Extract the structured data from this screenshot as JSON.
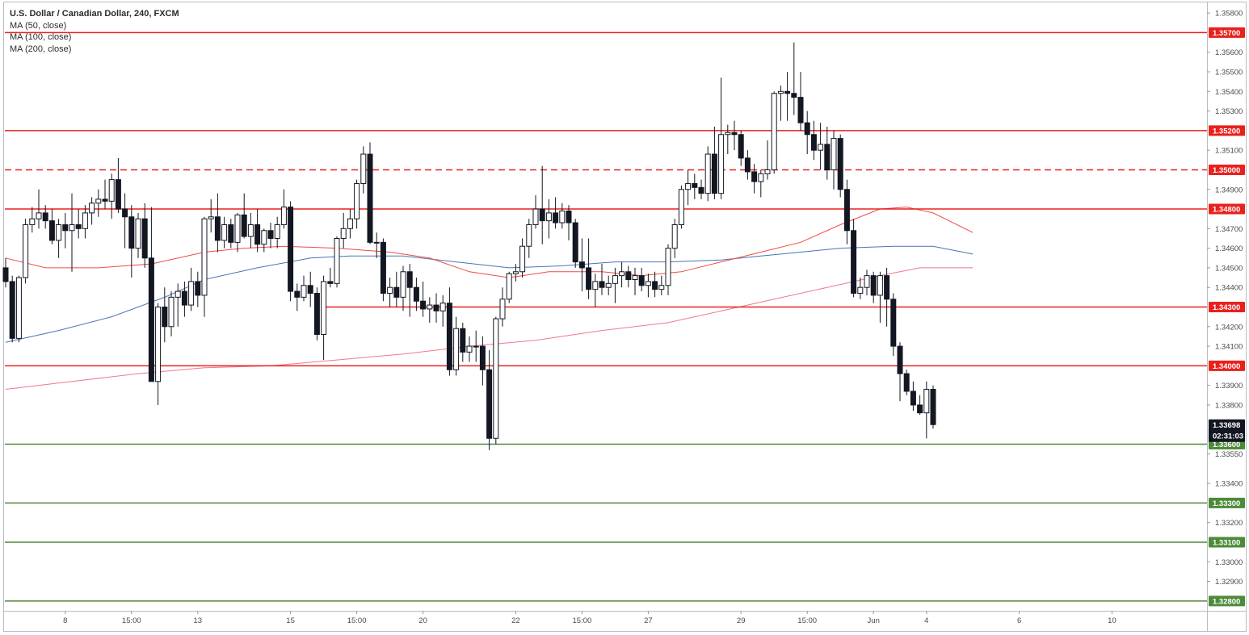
{
  "legend": {
    "title": "U.S. Dollar / Canadian Dollar, 240, FXCM",
    "items": [
      "MA (50, close)",
      "MA (100, close)",
      "MA (200, close)"
    ]
  },
  "chart_data": {
    "type": "candlestick",
    "title": "U.S. Dollar / Canadian Dollar, 240, FXCM",
    "ylim": [
      1.3275,
      1.3585
    ],
    "y_ticks": [
      "1.35800",
      "1.35600",
      "1.35500",
      "1.35400",
      "1.35300",
      "1.35100",
      "1.34900",
      "1.34700",
      "1.34600",
      "1.34500",
      "1.34400",
      "1.34200",
      "1.34100",
      "1.33900",
      "1.33800",
      "1.33550",
      "1.33400",
      "1.33200",
      "1.33000",
      "1.32900"
    ],
    "x_ticks": [
      {
        "label": "8",
        "i": 9
      },
      {
        "label": "15:00",
        "i": 19
      },
      {
        "label": "13",
        "i": 29
      },
      {
        "label": "15",
        "i": 43
      },
      {
        "label": "15:00",
        "i": 53
      },
      {
        "label": "20",
        "i": 63
      },
      {
        "label": "22",
        "i": 77
      },
      {
        "label": "15:00",
        "i": 87
      },
      {
        "label": "27",
        "i": 97
      },
      {
        "label": "29",
        "i": 111
      },
      {
        "label": "15:00",
        "i": 121
      },
      {
        "label": "Jun",
        "i": 131
      },
      {
        "label": "4",
        "i": 139
      },
      {
        "label": "6",
        "i": 153
      },
      {
        "label": "10",
        "i": 167
      }
    ],
    "levels": [
      {
        "value": 1.357,
        "label": "1.35700",
        "color": "#e8211d",
        "style": "solid"
      },
      {
        "value": 1.352,
        "label": "1.35200",
        "color": "#e8211d",
        "style": "solid"
      },
      {
        "value": 1.35,
        "label": "1.35000",
        "color": "#e8211d",
        "style": "dashed"
      },
      {
        "value": 1.348,
        "label": "1.34800",
        "color": "#e8211d",
        "style": "solid"
      },
      {
        "value": 1.343,
        "label": "1.34300",
        "color": "#e8211d",
        "style": "solid",
        "start_i": 48
      },
      {
        "value": 1.34,
        "label": "1.34000",
        "color": "#e8211d",
        "style": "solid"
      },
      {
        "value": 1.336,
        "label": "1.33600",
        "color": "#4e8a3a",
        "style": "solid"
      },
      {
        "value": 1.333,
        "label": "1.33300",
        "color": "#4e8a3a",
        "style": "solid"
      },
      {
        "value": 1.331,
        "label": "1.33100",
        "color": "#4e8a3a",
        "style": "solid"
      },
      {
        "value": 1.328,
        "label": "1.32800",
        "color": "#4e8a3a",
        "style": "solid"
      }
    ],
    "last_price": {
      "value": 1.33698,
      "label": "1.33698",
      "timer": "02:31:03",
      "color": "#131722"
    },
    "colors": {
      "up_body": "#ffffff",
      "down_body": "#131722",
      "wick": "#131722",
      "ma50": "#ef4b45",
      "ma100": "#4a73b5",
      "ma200": "#f0788a"
    },
    "candles": [
      {
        "o": 1.345,
        "h": 1.3455,
        "l": 1.344,
        "c": 1.3443
      },
      {
        "o": 1.3443,
        "h": 1.3446,
        "l": 1.3412,
        "c": 1.3414
      },
      {
        "o": 1.3414,
        "h": 1.3446,
        "l": 1.3412,
        "c": 1.3445
      },
      {
        "o": 1.3445,
        "h": 1.3475,
        "l": 1.3442,
        "c": 1.3472
      },
      {
        "o": 1.3472,
        "h": 1.3481,
        "l": 1.3468,
        "c": 1.3475
      },
      {
        "o": 1.3475,
        "h": 1.349,
        "l": 1.347,
        "c": 1.3478
      },
      {
        "o": 1.3478,
        "h": 1.3482,
        "l": 1.347,
        "c": 1.3474
      },
      {
        "o": 1.3474,
        "h": 1.348,
        "l": 1.3462,
        "c": 1.3464
      },
      {
        "o": 1.3464,
        "h": 1.3475,
        "l": 1.3455,
        "c": 1.3472
      },
      {
        "o": 1.3472,
        "h": 1.3478,
        "l": 1.346,
        "c": 1.3469
      },
      {
        "o": 1.3469,
        "h": 1.3488,
        "l": 1.3448,
        "c": 1.3472
      },
      {
        "o": 1.3472,
        "h": 1.348,
        "l": 1.3465,
        "c": 1.347
      },
      {
        "o": 1.347,
        "h": 1.3482,
        "l": 1.3465,
        "c": 1.3478
      },
      {
        "o": 1.3478,
        "h": 1.3486,
        "l": 1.3472,
        "c": 1.3483
      },
      {
        "o": 1.3483,
        "h": 1.349,
        "l": 1.3476,
        "c": 1.3485
      },
      {
        "o": 1.3485,
        "h": 1.3495,
        "l": 1.348,
        "c": 1.3484
      },
      {
        "o": 1.3484,
        "h": 1.3498,
        "l": 1.3475,
        "c": 1.3495
      },
      {
        "o": 1.3495,
        "h": 1.3506,
        "l": 1.3478,
        "c": 1.348
      },
      {
        "o": 1.348,
        "h": 1.3488,
        "l": 1.346,
        "c": 1.3476
      },
      {
        "o": 1.3476,
        "h": 1.3482,
        "l": 1.3445,
        "c": 1.346
      },
      {
        "o": 1.346,
        "h": 1.3478,
        "l": 1.3455,
        "c": 1.3475
      },
      {
        "o": 1.3475,
        "h": 1.3483,
        "l": 1.345,
        "c": 1.3455
      },
      {
        "o": 1.3455,
        "h": 1.3481,
        "l": 1.3392,
        "c": 1.3392
      },
      {
        "o": 1.3392,
        "h": 1.3432,
        "l": 1.338,
        "c": 1.343
      },
      {
        "o": 1.343,
        "h": 1.344,
        "l": 1.3412,
        "c": 1.342
      },
      {
        "o": 1.342,
        "h": 1.3438,
        "l": 1.3415,
        "c": 1.3435
      },
      {
        "o": 1.3435,
        "h": 1.3442,
        "l": 1.342,
        "c": 1.3438
      },
      {
        "o": 1.3438,
        "h": 1.3443,
        "l": 1.3425,
        "c": 1.3431
      },
      {
        "o": 1.3431,
        "h": 1.345,
        "l": 1.3428,
        "c": 1.3443
      },
      {
        "o": 1.3443,
        "h": 1.3448,
        "l": 1.343,
        "c": 1.3436
      },
      {
        "o": 1.3436,
        "h": 1.3476,
        "l": 1.3425,
        "c": 1.3475
      },
      {
        "o": 1.3475,
        "h": 1.3485,
        "l": 1.3468,
        "c": 1.3476
      },
      {
        "o": 1.3476,
        "h": 1.3488,
        "l": 1.3458,
        "c": 1.3464
      },
      {
        "o": 1.3464,
        "h": 1.3476,
        "l": 1.346,
        "c": 1.3472
      },
      {
        "o": 1.3472,
        "h": 1.3475,
        "l": 1.346,
        "c": 1.3463
      },
      {
        "o": 1.3463,
        "h": 1.3478,
        "l": 1.3458,
        "c": 1.3477
      },
      {
        "o": 1.3477,
        "h": 1.3488,
        "l": 1.3465,
        "c": 1.3466
      },
      {
        "o": 1.3466,
        "h": 1.3478,
        "l": 1.346,
        "c": 1.3472
      },
      {
        "o": 1.3472,
        "h": 1.348,
        "l": 1.3458,
        "c": 1.3462
      },
      {
        "o": 1.3462,
        "h": 1.347,
        "l": 1.3458,
        "c": 1.3469
      },
      {
        "o": 1.3469,
        "h": 1.3473,
        "l": 1.346,
        "c": 1.3465
      },
      {
        "o": 1.3465,
        "h": 1.3476,
        "l": 1.346,
        "c": 1.3472
      },
      {
        "o": 1.3472,
        "h": 1.349,
        "l": 1.347,
        "c": 1.3481
      },
      {
        "o": 1.3481,
        "h": 1.3484,
        "l": 1.3433,
        "c": 1.3438
      },
      {
        "o": 1.3438,
        "h": 1.3442,
        "l": 1.3428,
        "c": 1.3435
      },
      {
        "o": 1.3435,
        "h": 1.3446,
        "l": 1.3433,
        "c": 1.3441
      },
      {
        "o": 1.3441,
        "h": 1.3448,
        "l": 1.343,
        "c": 1.3437
      },
      {
        "o": 1.3437,
        "h": 1.344,
        "l": 1.3413,
        "c": 1.3416
      },
      {
        "o": 1.3416,
        "h": 1.3446,
        "l": 1.3403,
        "c": 1.3443
      },
      {
        "o": 1.3443,
        "h": 1.345,
        "l": 1.344,
        "c": 1.3442
      },
      {
        "o": 1.3442,
        "h": 1.3466,
        "l": 1.344,
        "c": 1.3465
      },
      {
        "o": 1.3465,
        "h": 1.3478,
        "l": 1.346,
        "c": 1.347
      },
      {
        "o": 1.347,
        "h": 1.348,
        "l": 1.3465,
        "c": 1.3475
      },
      {
        "o": 1.3475,
        "h": 1.3495,
        "l": 1.347,
        "c": 1.3493
      },
      {
        "o": 1.3493,
        "h": 1.3512,
        "l": 1.3488,
        "c": 1.3508
      },
      {
        "o": 1.3508,
        "h": 1.3514,
        "l": 1.3462,
        "c": 1.3463
      },
      {
        "o": 1.3463,
        "h": 1.3468,
        "l": 1.3455,
        "c": 1.3463
      },
      {
        "o": 1.3463,
        "h": 1.3465,
        "l": 1.3433,
        "c": 1.3437
      },
      {
        "o": 1.3437,
        "h": 1.3445,
        "l": 1.343,
        "c": 1.344
      },
      {
        "o": 1.344,
        "h": 1.3448,
        "l": 1.343,
        "c": 1.3435
      },
      {
        "o": 1.3435,
        "h": 1.3451,
        "l": 1.3428,
        "c": 1.3448
      },
      {
        "o": 1.3448,
        "h": 1.3452,
        "l": 1.3425,
        "c": 1.344
      },
      {
        "o": 1.344,
        "h": 1.3445,
        "l": 1.3428,
        "c": 1.3433
      },
      {
        "o": 1.3433,
        "h": 1.3443,
        "l": 1.3425,
        "c": 1.3429
      },
      {
        "o": 1.3429,
        "h": 1.3435,
        "l": 1.3422,
        "c": 1.3431
      },
      {
        "o": 1.3431,
        "h": 1.3437,
        "l": 1.3422,
        "c": 1.3428
      },
      {
        "o": 1.3428,
        "h": 1.3436,
        "l": 1.342,
        "c": 1.3432
      },
      {
        "o": 1.3432,
        "h": 1.344,
        "l": 1.3395,
        "c": 1.3398
      },
      {
        "o": 1.3398,
        "h": 1.3425,
        "l": 1.3395,
        "c": 1.3419
      },
      {
        "o": 1.3419,
        "h": 1.3422,
        "l": 1.3402,
        "c": 1.3407
      },
      {
        "o": 1.3407,
        "h": 1.3415,
        "l": 1.3402,
        "c": 1.341
      },
      {
        "o": 1.341,
        "h": 1.3418,
        "l": 1.3402,
        "c": 1.341
      },
      {
        "o": 1.341,
        "h": 1.3415,
        "l": 1.339,
        "c": 1.3398
      },
      {
        "o": 1.3398,
        "h": 1.3408,
        "l": 1.3357,
        "c": 1.3363
      },
      {
        "o": 1.3363,
        "h": 1.3425,
        "l": 1.336,
        "c": 1.3424
      },
      {
        "o": 1.3424,
        "h": 1.344,
        "l": 1.342,
        "c": 1.3434
      },
      {
        "o": 1.3434,
        "h": 1.3448,
        "l": 1.3432,
        "c": 1.3447
      },
      {
        "o": 1.3447,
        "h": 1.3452,
        "l": 1.3443,
        "c": 1.3448
      },
      {
        "o": 1.3448,
        "h": 1.3465,
        "l": 1.3445,
        "c": 1.3461
      },
      {
        "o": 1.3461,
        "h": 1.3475,
        "l": 1.3455,
        "c": 1.3472
      },
      {
        "o": 1.3472,
        "h": 1.3487,
        "l": 1.347,
        "c": 1.348
      },
      {
        "o": 1.348,
        "h": 1.3502,
        "l": 1.3462,
        "c": 1.3474
      },
      {
        "o": 1.3474,
        "h": 1.3485,
        "l": 1.3465,
        "c": 1.3478
      },
      {
        "o": 1.3478,
        "h": 1.3486,
        "l": 1.347,
        "c": 1.3473
      },
      {
        "o": 1.3473,
        "h": 1.3483,
        "l": 1.347,
        "c": 1.3479
      },
      {
        "o": 1.3479,
        "h": 1.3482,
        "l": 1.3464,
        "c": 1.3473
      },
      {
        "o": 1.3473,
        "h": 1.3475,
        "l": 1.345,
        "c": 1.3453
      },
      {
        "o": 1.3453,
        "h": 1.3465,
        "l": 1.3438,
        "c": 1.345
      },
      {
        "o": 1.345,
        "h": 1.3465,
        "l": 1.3434,
        "c": 1.3439
      },
      {
        "o": 1.3439,
        "h": 1.3447,
        "l": 1.343,
        "c": 1.3443
      },
      {
        "o": 1.3443,
        "h": 1.3452,
        "l": 1.3436,
        "c": 1.344
      },
      {
        "o": 1.344,
        "h": 1.3446,
        "l": 1.3436,
        "c": 1.3442
      },
      {
        "o": 1.3442,
        "h": 1.345,
        "l": 1.3432,
        "c": 1.3446
      },
      {
        "o": 1.3446,
        "h": 1.3453,
        "l": 1.344,
        "c": 1.3448
      },
      {
        "o": 1.3448,
        "h": 1.3451,
        "l": 1.344,
        "c": 1.3444
      },
      {
        "o": 1.3444,
        "h": 1.345,
        "l": 1.3436,
        "c": 1.3446
      },
      {
        "o": 1.3446,
        "h": 1.345,
        "l": 1.3438,
        "c": 1.3441
      },
      {
        "o": 1.3441,
        "h": 1.3447,
        "l": 1.3435,
        "c": 1.3443
      },
      {
        "o": 1.3443,
        "h": 1.3448,
        "l": 1.3435,
        "c": 1.3439
      },
      {
        "o": 1.3439,
        "h": 1.3446,
        "l": 1.3436,
        "c": 1.3441
      },
      {
        "o": 1.3441,
        "h": 1.3462,
        "l": 1.3436,
        "c": 1.346
      },
      {
        "o": 1.346,
        "h": 1.3475,
        "l": 1.3455,
        "c": 1.3472
      },
      {
        "o": 1.3472,
        "h": 1.3492,
        "l": 1.347,
        "c": 1.349
      },
      {
        "o": 1.349,
        "h": 1.35,
        "l": 1.3482,
        "c": 1.3493
      },
      {
        "o": 1.3493,
        "h": 1.3498,
        "l": 1.3485,
        "c": 1.3491
      },
      {
        "o": 1.3491,
        "h": 1.3495,
        "l": 1.3485,
        "c": 1.3488
      },
      {
        "o": 1.3488,
        "h": 1.3512,
        "l": 1.3484,
        "c": 1.3508
      },
      {
        "o": 1.3508,
        "h": 1.3522,
        "l": 1.3485,
        "c": 1.3488
      },
      {
        "o": 1.3488,
        "h": 1.3547,
        "l": 1.3485,
        "c": 1.3518
      },
      {
        "o": 1.3518,
        "h": 1.3523,
        "l": 1.3508,
        "c": 1.3519
      },
      {
        "o": 1.3519,
        "h": 1.3525,
        "l": 1.351,
        "c": 1.3518
      },
      {
        "o": 1.3518,
        "h": 1.352,
        "l": 1.3502,
        "c": 1.3506
      },
      {
        "o": 1.3506,
        "h": 1.351,
        "l": 1.3495,
        "c": 1.3499
      },
      {
        "o": 1.3499,
        "h": 1.3503,
        "l": 1.3488,
        "c": 1.3494
      },
      {
        "o": 1.3494,
        "h": 1.35,
        "l": 1.3486,
        "c": 1.3498
      },
      {
        "o": 1.3498,
        "h": 1.3515,
        "l": 1.3495,
        "c": 1.35
      },
      {
        "o": 1.35,
        "h": 1.354,
        "l": 1.3498,
        "c": 1.3539
      },
      {
        "o": 1.3539,
        "h": 1.3543,
        "l": 1.3525,
        "c": 1.354
      },
      {
        "o": 1.354,
        "h": 1.355,
        "l": 1.3525,
        "c": 1.3539
      },
      {
        "o": 1.3539,
        "h": 1.3565,
        "l": 1.3528,
        "c": 1.3537
      },
      {
        "o": 1.3537,
        "h": 1.355,
        "l": 1.352,
        "c": 1.3524
      },
      {
        "o": 1.3524,
        "h": 1.353,
        "l": 1.3508,
        "c": 1.3518
      },
      {
        "o": 1.3518,
        "h": 1.3525,
        "l": 1.3505,
        "c": 1.351
      },
      {
        "o": 1.351,
        "h": 1.3524,
        "l": 1.35,
        "c": 1.3513
      },
      {
        "o": 1.3513,
        "h": 1.3522,
        "l": 1.3495,
        "c": 1.35
      },
      {
        "o": 1.35,
        "h": 1.352,
        "l": 1.349,
        "c": 1.3516
      },
      {
        "o": 1.3516,
        "h": 1.3518,
        "l": 1.3486,
        "c": 1.349
      },
      {
        "o": 1.349,
        "h": 1.3495,
        "l": 1.3462,
        "c": 1.3469
      },
      {
        "o": 1.3469,
        "h": 1.3475,
        "l": 1.3435,
        "c": 1.3437
      },
      {
        "o": 1.3437,
        "h": 1.3445,
        "l": 1.3434,
        "c": 1.344
      },
      {
        "o": 1.344,
        "h": 1.3449,
        "l": 1.3436,
        "c": 1.3446
      },
      {
        "o": 1.3446,
        "h": 1.3448,
        "l": 1.3432,
        "c": 1.3436
      },
      {
        "o": 1.3436,
        "h": 1.3448,
        "l": 1.3422,
        "c": 1.3446
      },
      {
        "o": 1.3446,
        "h": 1.345,
        "l": 1.342,
        "c": 1.3434
      },
      {
        "o": 1.3434,
        "h": 1.3437,
        "l": 1.3405,
        "c": 1.341
      },
      {
        "o": 1.341,
        "h": 1.3412,
        "l": 1.3382,
        "c": 1.3396
      },
      {
        "o": 1.3396,
        "h": 1.3398,
        "l": 1.3385,
        "c": 1.3387
      },
      {
        "o": 1.3387,
        "h": 1.3392,
        "l": 1.3377,
        "c": 1.338
      },
      {
        "o": 1.338,
        "h": 1.3385,
        "l": 1.3375,
        "c": 1.3376
      },
      {
        "o": 1.3376,
        "h": 1.3392,
        "l": 1.3363,
        "c": 1.3388
      },
      {
        "o": 1.3388,
        "h": 1.339,
        "l": 1.3368,
        "c": 1.337
      }
    ],
    "ma50": [
      [
        0,
        1.3455
      ],
      [
        6,
        1.345
      ],
      [
        14,
        1.345
      ],
      [
        22,
        1.3452
      ],
      [
        30,
        1.3458
      ],
      [
        36,
        1.346
      ],
      [
        42,
        1.3461
      ],
      [
        50,
        1.346
      ],
      [
        58,
        1.3458
      ],
      [
        64,
        1.3455
      ],
      [
        70,
        1.3448
      ],
      [
        76,
        1.3445
      ],
      [
        82,
        1.3448
      ],
      [
        90,
        1.3448
      ],
      [
        96,
        1.3446
      ],
      [
        102,
        1.3448
      ],
      [
        108,
        1.3453
      ],
      [
        114,
        1.3458
      ],
      [
        120,
        1.3463
      ],
      [
        126,
        1.3472
      ],
      [
        132,
        1.348
      ],
      [
        136,
        1.3481
      ],
      [
        140,
        1.3478
      ],
      [
        146,
        1.3468
      ]
    ],
    "ma100": [
      [
        0,
        1.3412
      ],
      [
        8,
        1.3418
      ],
      [
        16,
        1.3425
      ],
      [
        24,
        1.3435
      ],
      [
        30,
        1.3444
      ],
      [
        38,
        1.345
      ],
      [
        46,
        1.3455
      ],
      [
        52,
        1.3456
      ],
      [
        60,
        1.3456
      ],
      [
        68,
        1.3453
      ],
      [
        76,
        1.345
      ],
      [
        84,
        1.3451
      ],
      [
        92,
        1.3453
      ],
      [
        100,
        1.3453
      ],
      [
        108,
        1.3454
      ],
      [
        114,
        1.3456
      ],
      [
        120,
        1.3458
      ],
      [
        126,
        1.346
      ],
      [
        134,
        1.3461
      ],
      [
        140,
        1.3461
      ],
      [
        146,
        1.3457
      ]
    ],
    "ma200": [
      [
        0,
        1.3388
      ],
      [
        10,
        1.3392
      ],
      [
        20,
        1.3396
      ],
      [
        30,
        1.3399
      ],
      [
        40,
        1.34
      ],
      [
        50,
        1.3403
      ],
      [
        60,
        1.3406
      ],
      [
        70,
        1.341
      ],
      [
        80,
        1.3413
      ],
      [
        90,
        1.3418
      ],
      [
        100,
        1.3422
      ],
      [
        108,
        1.3428
      ],
      [
        116,
        1.3434
      ],
      [
        124,
        1.344
      ],
      [
        132,
        1.3446
      ],
      [
        138,
        1.345
      ],
      [
        146,
        1.345
      ]
    ]
  }
}
